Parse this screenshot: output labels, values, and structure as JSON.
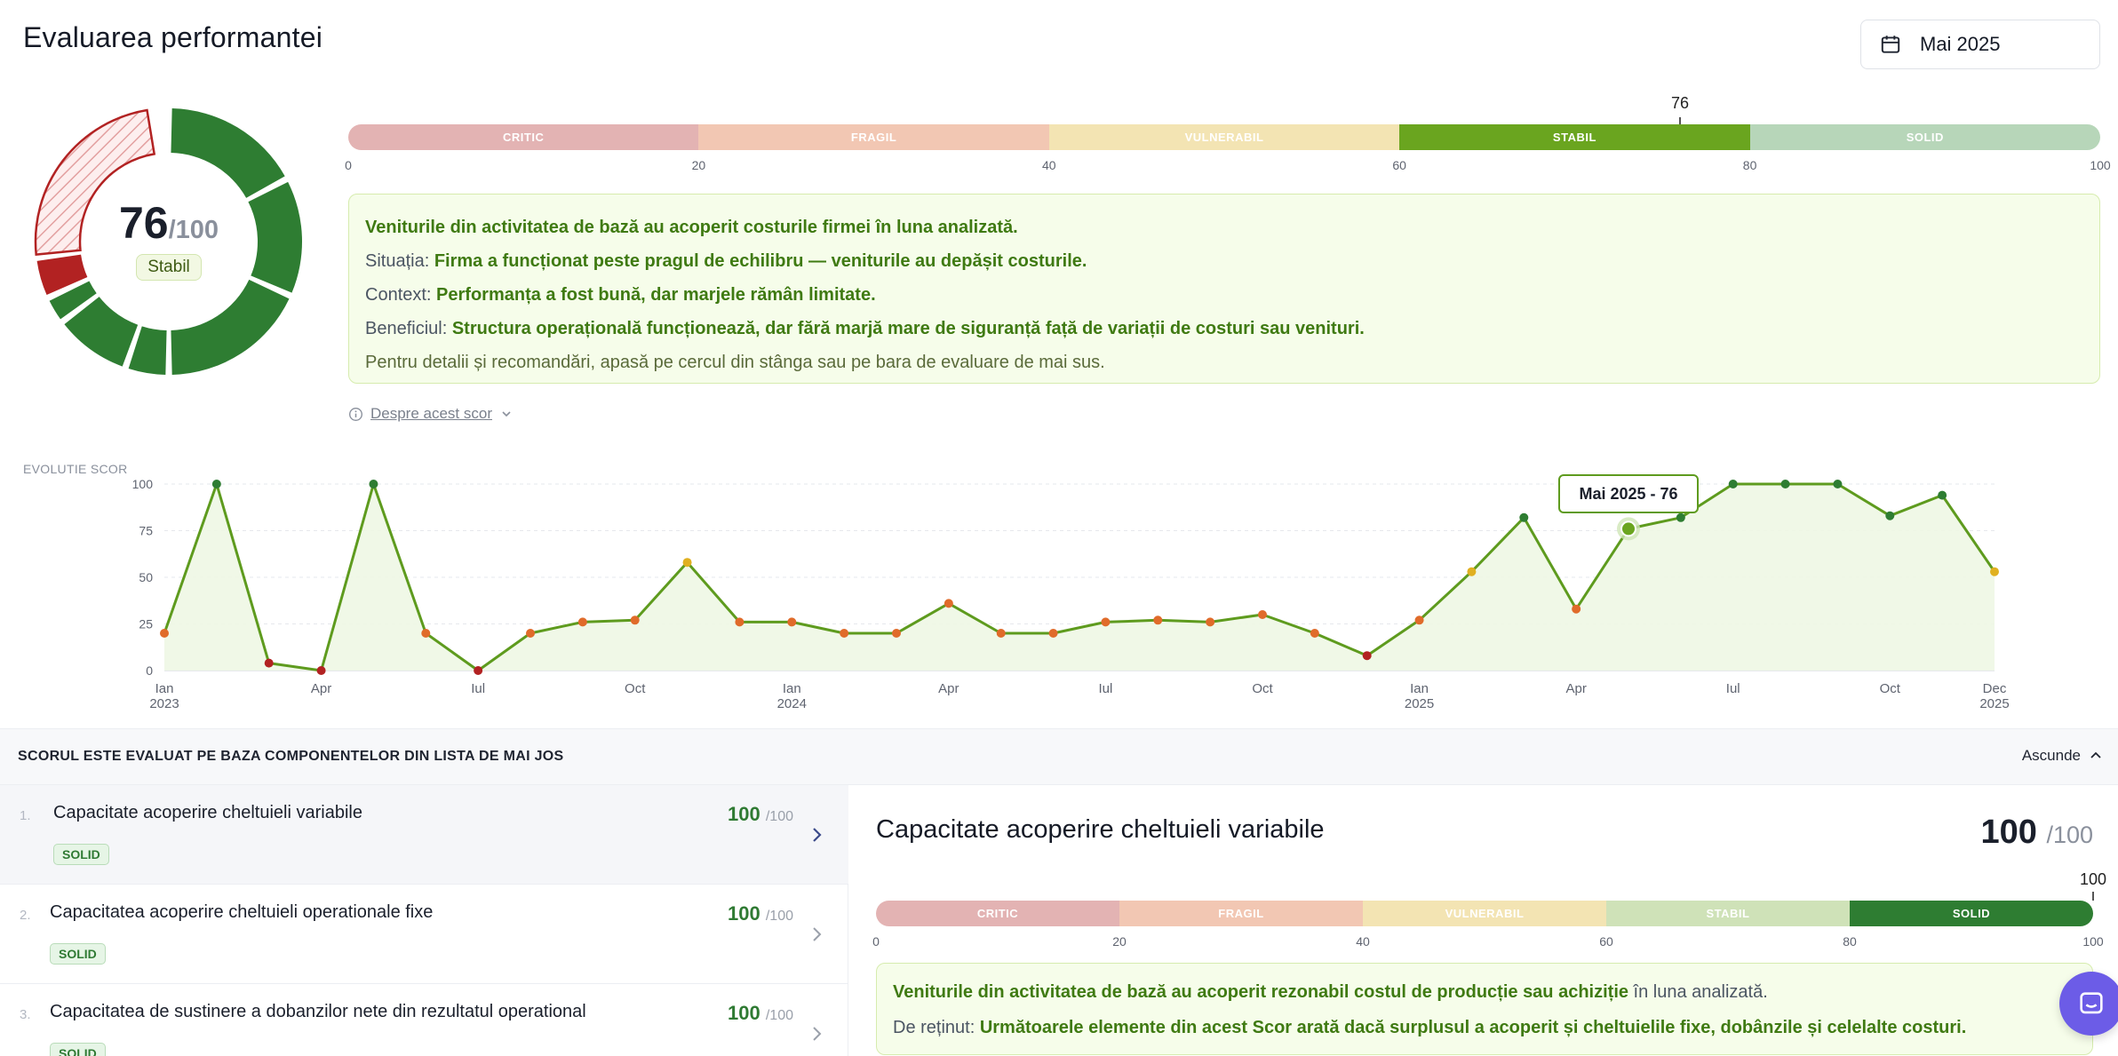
{
  "page": {
    "title": "Evaluarea performantei"
  },
  "date_picker": {
    "value": "Mai 2025",
    "icon": "calendar-icon"
  },
  "score": {
    "value": "76",
    "max": "/100",
    "status": "Stabil"
  },
  "rating_scale": {
    "segments": [
      {
        "label": "CRITIC",
        "color": "#e3b3b3"
      },
      {
        "label": "FRAGIL",
        "color": "#f2c7b3"
      },
      {
        "label": "VULNERABIL",
        "color": "#f3e4b3"
      },
      {
        "label": "STABIL",
        "color": "#6aa51f"
      },
      {
        "label": "SOLID",
        "color": "#b7d6b9"
      }
    ],
    "ticks": [
      "0",
      "20",
      "40",
      "60",
      "80",
      "100"
    ],
    "marker_label": "76",
    "marker_value": 76
  },
  "summary": {
    "headline": "Veniturile din activitatea de bază au acoperit costurile firmei în luna analizată.",
    "situation_label": "Situația:",
    "situation_text": "Firma a funcționat peste pragul de echilibru — veniturile au depășit costurile.",
    "context_label": "Context:",
    "context_text": "Performanța a fost bună, dar marjele rămân limitate.",
    "benefit_label": "Beneficiul:",
    "benefit_text": "Structura operațională funcționează, dar fără marjă mare de siguranță față de variații de costuri sau venituri.",
    "hint": "Pentru detalii și recomandări, apasă pe cercul din stânga sau pe bara de evaluare de mai sus."
  },
  "about_link": {
    "label": "Despre acest scor"
  },
  "chart_data": {
    "type": "line",
    "title": "EVOLUTIE SCOR",
    "x": [
      "Ian 2023",
      "Feb 2023",
      "Mar 2023",
      "Apr 2023",
      "Mai 2023",
      "Iun 2023",
      "Iul 2023",
      "Aug 2023",
      "Sep 2023",
      "Oct 2023",
      "Nov 2023",
      "Dec 2023",
      "Ian 2024",
      "Feb 2024",
      "Mar 2024",
      "Apr 2024",
      "Mai 2024",
      "Iun 2024",
      "Iul 2024",
      "Aug 2024",
      "Sep 2024",
      "Oct 2024",
      "Nov 2024",
      "Dec 2024",
      "Ian 2025",
      "Feb 2025",
      "Mar 2025",
      "Apr 2025",
      "Mai 2025",
      "Iun 2025",
      "Iul 2025",
      "Aug 2025",
      "Sep 2025",
      "Oct 2025",
      "Nov 2025",
      "Dec 2025"
    ],
    "series": [
      {
        "values": [
          20,
          100,
          4,
          0,
          100,
          20,
          0,
          20,
          26,
          27,
          58,
          26,
          26,
          20,
          20,
          36,
          20,
          20,
          26,
          27,
          26,
          30,
          20,
          8,
          27,
          53,
          82,
          33,
          76,
          82,
          100,
          100,
          100,
          83,
          94,
          53
        ]
      }
    ],
    "x_tick_labels": [
      {
        "month": "Ian",
        "year": "2023",
        "index": 0
      },
      {
        "month": "Apr",
        "year": "",
        "index": 3
      },
      {
        "month": "Iul",
        "year": "",
        "index": 6
      },
      {
        "month": "Oct",
        "year": "",
        "index": 9
      },
      {
        "month": "Ian",
        "year": "2024",
        "index": 12
      },
      {
        "month": "Apr",
        "year": "",
        "index": 15
      },
      {
        "month": "Iul",
        "year": "",
        "index": 18
      },
      {
        "month": "Oct",
        "year": "",
        "index": 21
      },
      {
        "month": "Ian",
        "year": "2025",
        "index": 24
      },
      {
        "month": "Apr",
        "year": "",
        "index": 27
      },
      {
        "month": "Iul",
        "year": "",
        "index": 30
      },
      {
        "month": "Oct",
        "year": "",
        "index": 33
      },
      {
        "month": "Dec",
        "year": "2025",
        "index": 35
      }
    ],
    "y_ticks": [
      "0",
      "25",
      "50",
      "75",
      "100"
    ],
    "ylim": [
      0,
      100
    ],
    "grid": true,
    "line_color": "#5e9b1e",
    "highlight_index": 28,
    "tooltip": "Mai 2025 - 76"
  },
  "components_header": {
    "title": "SCORUL ESTE EVALUAT PE BAZA COMPONENTELOR DIN LISTA DE MAI JOS",
    "collapse_label": "Ascunde"
  },
  "components": [
    {
      "num": "1.",
      "name": "Capacitate acoperire cheltuieli variabile",
      "badge": "SOLID",
      "score": "100",
      "max": "/100"
    },
    {
      "num": "2.",
      "name": "Capacitatea acoperire cheltuieli operationale fixe",
      "badge": "SOLID",
      "score": "100",
      "max": "/100"
    },
    {
      "num": "3.",
      "name": "Capacitatea de sustinere a dobanzilor nete din rezultatul operational",
      "badge": "SOLID",
      "score": "100",
      "max": "/100"
    }
  ],
  "detail": {
    "title": "Capacitate acoperire cheltuieli variabile",
    "score": "100",
    "max": "/100",
    "segments": [
      {
        "label": "CRITIC",
        "color": "#e3b3b3"
      },
      {
        "label": "FRAGIL",
        "color": "#f2c7b3"
      },
      {
        "label": "VULNERABIL",
        "color": "#f3e4b3"
      },
      {
        "label": "STABIL",
        "color": "#cfe2b8"
      },
      {
        "label": "SOLID",
        "color": "#2e7d32"
      }
    ],
    "ticks": [
      "0",
      "20",
      "40",
      "60",
      "80",
      "100"
    ],
    "marker_label": "100",
    "marker_value": 100,
    "line1_bold": "Veniturile din activitatea de bază au acoperit rezonabil costul de producție sau achiziție",
    "line1_rest": " în luna analizată.",
    "line2_label": "De reținut:",
    "line2_text": "Următoarele elemente din acest Scor arată dacă surplusul a acoperit și cheltuielile fixe, dobânzile și celelalte costuri."
  },
  "chat": {
    "icon": "chat-icon"
  }
}
